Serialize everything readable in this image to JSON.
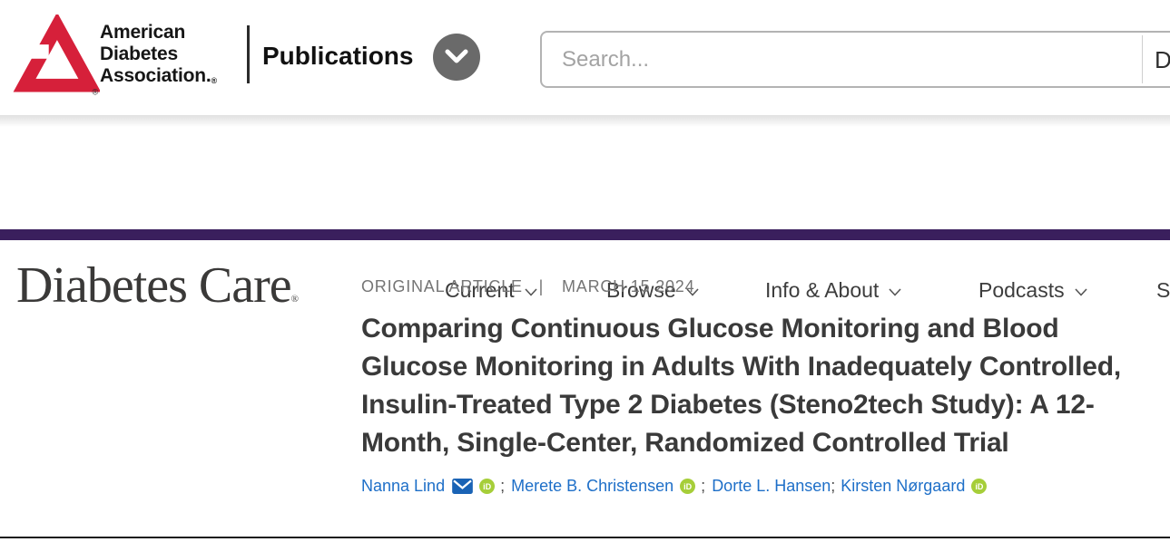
{
  "colors": {
    "ada_red": "#d6203a",
    "purple": "#3a1f5d",
    "circle_gray": "#6a6a6a",
    "link_blue": "#1e6fc8",
    "envelope_blue": "#1a63b5",
    "orcid_green": "#a6ce39",
    "search_border": "#b3b3b3",
    "placeholder_gray": "#a3a3a3",
    "eyebrow_gray": "#757575"
  },
  "brand": {
    "org_line1": "American",
    "org_line2": "Diabetes",
    "org_line3": "Association.",
    "reg_mark": "®",
    "publications_label": "Publications"
  },
  "search": {
    "placeholder": "Search...",
    "scope_partial": "Di"
  },
  "journal": {
    "name": "Diabetes Care",
    "reg_mark": "®"
  },
  "nav": {
    "items": [
      {
        "label": "Current"
      },
      {
        "label": "Browse"
      },
      {
        "label": "Info & About"
      },
      {
        "label": "Podcasts"
      }
    ],
    "partial_item": "S"
  },
  "article": {
    "category": "ORIGINAL ARTICLE",
    "separator": "|",
    "date": "MARCH 15 2024",
    "title": "Comparing Continuous Glucose Monitoring and Blood Glucose Monitoring in Adults With Inadequately Controlled, Insulin-Treated Type 2 Diabetes (Steno2tech Study): A 12-Month, Single-Center, Randomized Controlled Trial",
    "authors": [
      {
        "name": "Nanna Lind",
        "email": true,
        "orcid": true,
        "sep": "spaced"
      },
      {
        "name": "Merete B. Christensen",
        "email": false,
        "orcid": true,
        "sep": "spaced"
      },
      {
        "name": "Dorte L. Hansen",
        "email": false,
        "orcid": false,
        "sep": "tight"
      },
      {
        "name": "Kirsten Nørgaard",
        "email": false,
        "orcid": true,
        "sep": null
      }
    ],
    "orcid_label": "iD"
  }
}
